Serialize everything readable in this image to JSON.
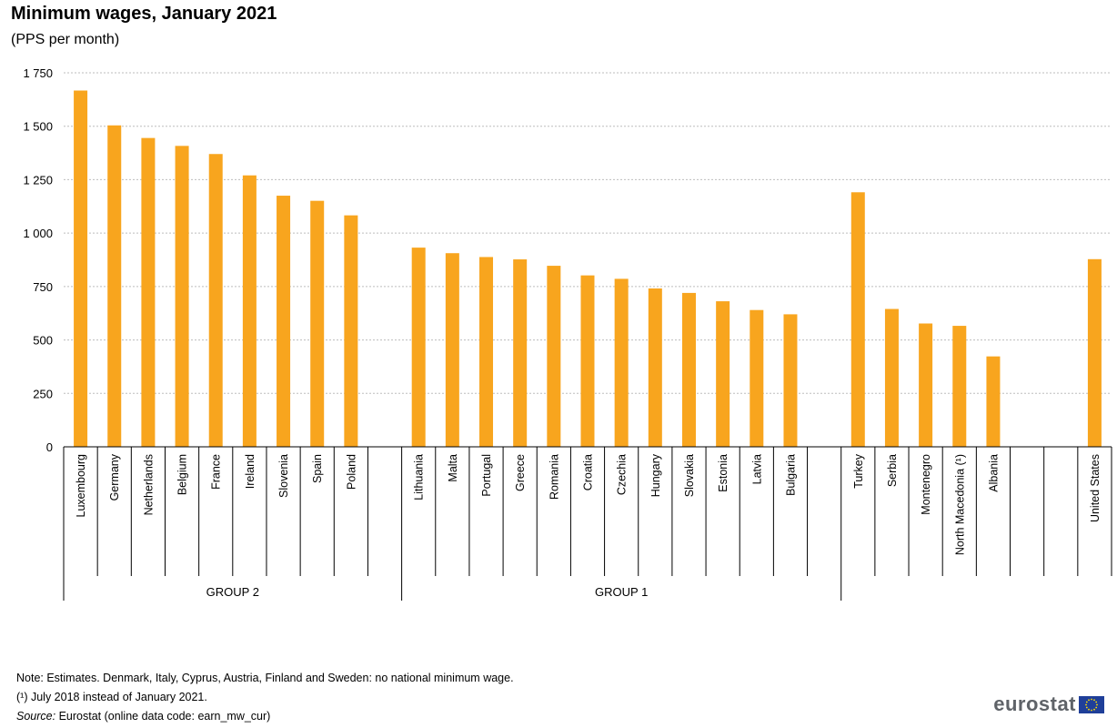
{
  "header": {
    "title": "Minimum wages, January 2021",
    "subtitle": "(PPS per month)"
  },
  "notes": {
    "line1": "Note: Estimates. Denmark, Italy, Cyprus, Austria, Finland and Sweden: no national minimum wage.",
    "line2": "(¹) July 2018 instead of January 2021.",
    "source_label": "Source:",
    "source_text": " Eurostat (online data code: earn_mw_cur)"
  },
  "logo": {
    "text": "eurostat",
    "icon": "eu-flag-icon"
  },
  "colors": {
    "bar": "#F8A51E",
    "grid": "#BDBDBD",
    "axis": "#000000",
    "flag_blue": "#1F3F99",
    "flag_star": "#FFDD00"
  },
  "chart_data": {
    "type": "bar",
    "ylim": [
      0,
      1750
    ],
    "yticks": [
      0,
      250,
      500,
      750,
      1000,
      1250,
      1500,
      1750
    ],
    "ytick_labels": [
      "0",
      "250",
      "500",
      "750",
      "1 000",
      "1 250",
      "1 500",
      "1 750"
    ],
    "grid": true,
    "legend": "none",
    "categories": [
      "Luxembourg",
      "Germany",
      "Netherlands",
      "Belgium",
      "France",
      "Ireland",
      "Slovenia",
      "Spain",
      "Poland",
      "",
      "Lithuania",
      "Malta",
      "Portugal",
      "Greece",
      "Romania",
      "Croatia",
      "Czechia",
      "Hungary",
      "Slovakia",
      "Estonia",
      "Latvia",
      "Bulgaria",
      "",
      "Turkey",
      "Serbia",
      "Montenegro",
      "North Macedonia (¹)",
      "Albania",
      "",
      "",
      "United States"
    ],
    "values": [
      1667,
      1504,
      1445,
      1408,
      1370,
      1270,
      1175,
      1151,
      1083,
      null,
      932,
      906,
      888,
      877,
      847,
      802,
      786,
      741,
      720,
      681,
      640,
      620,
      null,
      1191,
      645,
      577,
      566,
      423,
      null,
      null,
      878
    ],
    "groups": [
      {
        "label": "GROUP 2",
        "start": 0,
        "end": 9
      },
      {
        "label": "GROUP 1",
        "start": 10,
        "end": 22
      },
      {
        "label": "",
        "start": 23,
        "end": 30
      }
    ]
  }
}
